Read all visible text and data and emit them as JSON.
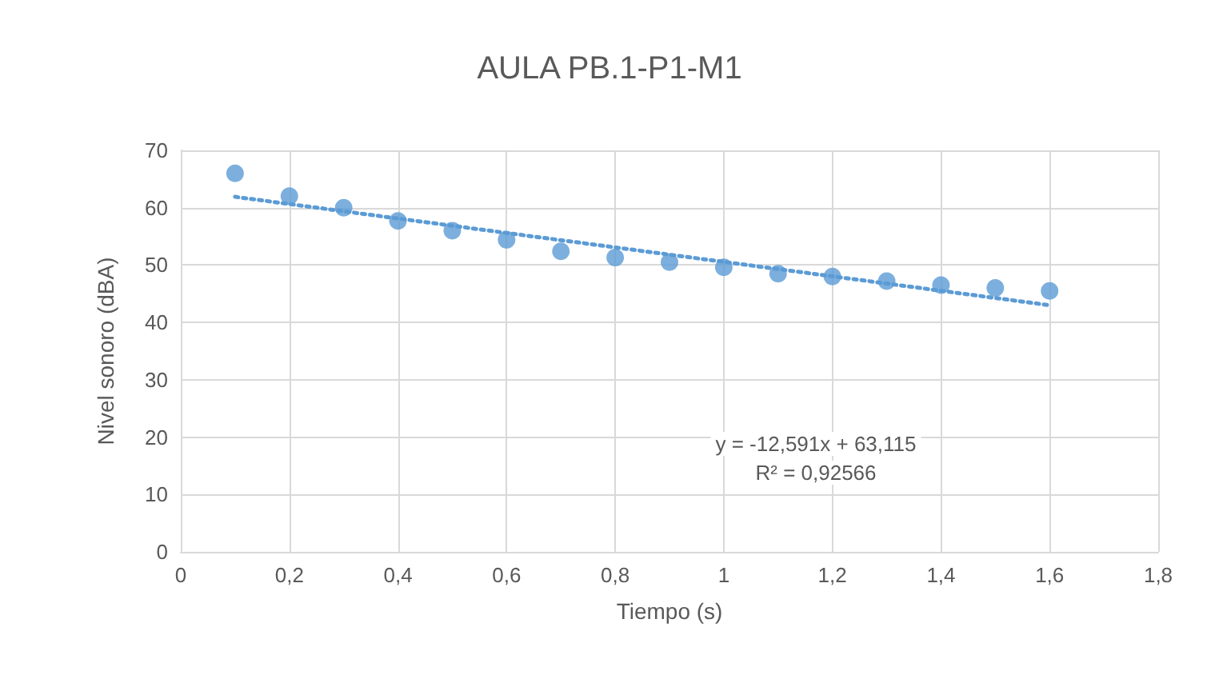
{
  "chart_data": {
    "type": "scatter",
    "title": "AULA PB.1-P1-M1",
    "xlabel": "Tiempo (s)",
    "ylabel": "Nivel sonoro (dBA)",
    "annotations": [
      "y = -12,591x + 63,115",
      "R² = 0,92566"
    ],
    "x": [
      0.1,
      0.2,
      0.3,
      0.4,
      0.5,
      0.6,
      0.7,
      0.8,
      0.9,
      1.0,
      1.1,
      1.2,
      1.3,
      1.4,
      1.5,
      1.6
    ],
    "series": [
      {
        "color": "#5b9bd5",
        "marker": "circle",
        "values": [
          66,
          62,
          60,
          57.7,
          56,
          54.4,
          52.4,
          51.3,
          50.5,
          49.6,
          48.5,
          48,
          47.2,
          46.5,
          46,
          45.5
        ]
      },
      {
        "type": "line",
        "color": "#5b9bd5",
        "marker": "none",
        "line_style": "dotted",
        "x": [
          0.1,
          1.6
        ],
        "values": [
          61.9,
          43.0
        ]
      }
    ],
    "xlim": [
      0,
      1.8
    ],
    "xticks": [
      0,
      {
        "value": 0.2,
        "label": "0,2"
      },
      {
        "value": 0.4,
        "label": "0,4"
      },
      {
        "value": 0.6,
        "label": "0,6"
      },
      {
        "value": 0.8,
        "label": "0,8"
      },
      1,
      {
        "value": 1.2,
        "label": "1,2"
      },
      {
        "value": 1.4,
        "label": "1,4"
      },
      {
        "value": 1.6,
        "label": "1,6"
      },
      {
        "value": 1.8,
        "label": "1,8"
      }
    ],
    "ylim": [
      0,
      70
    ],
    "yticks": [
      0,
      10,
      20,
      30,
      40,
      50,
      60,
      70
    ],
    "grid": true
  }
}
